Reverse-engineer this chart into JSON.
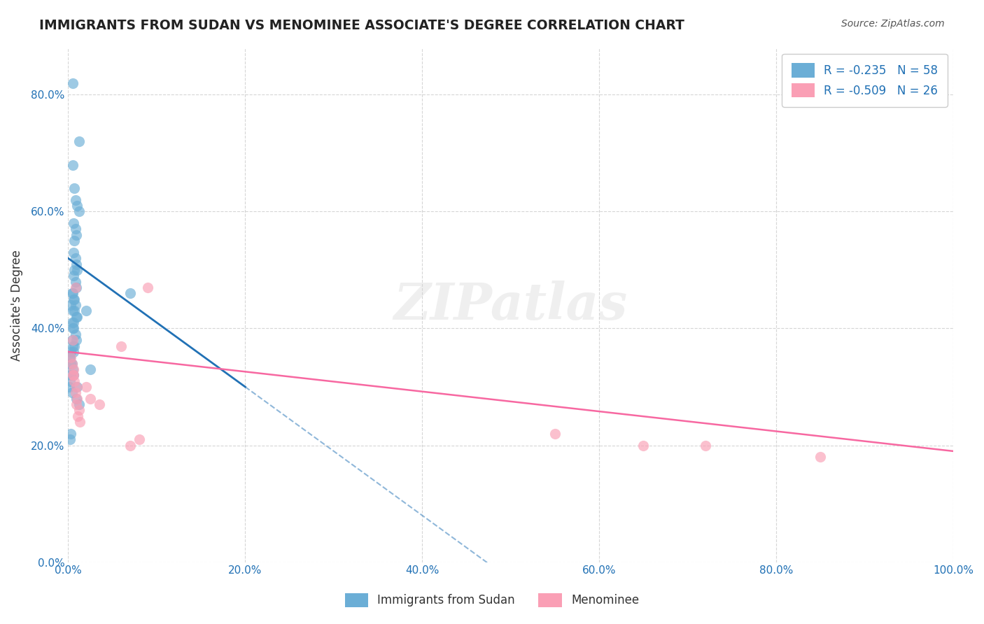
{
  "title": "IMMIGRANTS FROM SUDAN VS MENOMINEE ASSOCIATE'S DEGREE CORRELATION CHART",
  "source": "Source: ZipAtlas.com",
  "xlabel": "",
  "ylabel": "Associate's Degree",
  "xlim": [
    0,
    1.0
  ],
  "ylim": [
    0,
    0.88
  ],
  "yticks": [
    0.0,
    0.2,
    0.4,
    0.6,
    0.8
  ],
  "xticks": [
    0.0,
    0.2,
    0.4,
    0.6,
    0.8,
    1.0
  ],
  "legend1_label": "Immigrants from Sudan",
  "legend2_label": "Menominee",
  "R1": -0.235,
  "N1": 58,
  "R2": -0.509,
  "N2": 26,
  "blue_color": "#6baed6",
  "pink_color": "#fa9fb5",
  "blue_line_color": "#2171b5",
  "pink_line_color": "#f768a1",
  "watermark": "ZIPatlas",
  "blue_dots_x": [
    0.005,
    0.012,
    0.005,
    0.007,
    0.008,
    0.01,
    0.012,
    0.006,
    0.008,
    0.009,
    0.007,
    0.006,
    0.008,
    0.009,
    0.01,
    0.007,
    0.006,
    0.008,
    0.009,
    0.005,
    0.004,
    0.006,
    0.007,
    0.008,
    0.003,
    0.005,
    0.007,
    0.009,
    0.01,
    0.006,
    0.004,
    0.005,
    0.006,
    0.008,
    0.009,
    0.004,
    0.005,
    0.007,
    0.006,
    0.003,
    0.001,
    0.002,
    0.003,
    0.004,
    0.005,
    0.006,
    0.003,
    0.002,
    0.001,
    0.004,
    0.009,
    0.012,
    0.02,
    0.025,
    0.07,
    0.01,
    0.003,
    0.002
  ],
  "blue_dots_y": [
    0.82,
    0.72,
    0.68,
    0.64,
    0.62,
    0.61,
    0.6,
    0.58,
    0.57,
    0.56,
    0.55,
    0.53,
    0.52,
    0.51,
    0.5,
    0.5,
    0.49,
    0.48,
    0.47,
    0.46,
    0.46,
    0.45,
    0.45,
    0.44,
    0.44,
    0.43,
    0.43,
    0.42,
    0.42,
    0.41,
    0.41,
    0.4,
    0.4,
    0.39,
    0.38,
    0.38,
    0.37,
    0.37,
    0.36,
    0.36,
    0.35,
    0.35,
    0.34,
    0.34,
    0.33,
    0.32,
    0.32,
    0.31,
    0.3,
    0.29,
    0.28,
    0.27,
    0.43,
    0.33,
    0.46,
    0.3,
    0.22,
    0.21
  ],
  "pink_dots_x": [
    0.005,
    0.008,
    0.006,
    0.009,
    0.01,
    0.012,
    0.003,
    0.005,
    0.007,
    0.008,
    0.004,
    0.006,
    0.009,
    0.011,
    0.013,
    0.02,
    0.025,
    0.035,
    0.09,
    0.06,
    0.07,
    0.08,
    0.55,
    0.65,
    0.72,
    0.85
  ],
  "pink_dots_y": [
    0.38,
    0.47,
    0.33,
    0.3,
    0.28,
    0.26,
    0.35,
    0.32,
    0.31,
    0.29,
    0.34,
    0.32,
    0.27,
    0.25,
    0.24,
    0.3,
    0.28,
    0.27,
    0.47,
    0.37,
    0.2,
    0.21,
    0.22,
    0.2,
    0.2,
    0.18
  ]
}
